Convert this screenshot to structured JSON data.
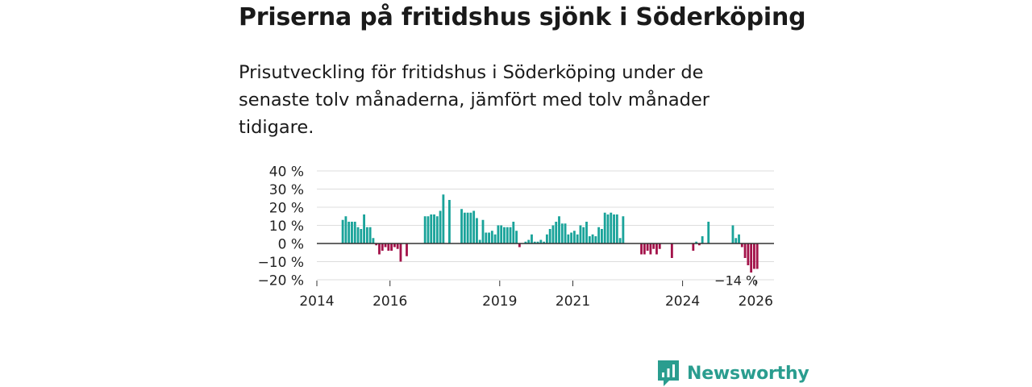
{
  "title": "Priserna på fritidshus sjönk i Söderköping",
  "subtitle": "Prisutveckling för fritidshus i Söderköping under de senaste tolv månaderna, jämfört med tolv månader tidigare.",
  "brand": {
    "name": "Newsworthy",
    "icon": "chart-logo-icon"
  },
  "colors": {
    "positive": "#1aa39a",
    "negative": "#a3134a",
    "grid": "#dddddd",
    "axis": "#333333",
    "brand": "#2a9d8f"
  },
  "chart_data": {
    "type": "bar",
    "title": "Priserna på fritidshus sjönk i Söderköping",
    "xlabel": "",
    "ylabel": "",
    "unit": "%",
    "ylim": [
      -20,
      40
    ],
    "yticks": [
      40,
      30,
      20,
      10,
      0,
      -10,
      -20
    ],
    "ytick_labels": [
      "40 %",
      "30 %",
      "20 %",
      "10 %",
      "0 %",
      "−10 %",
      "−20 %"
    ],
    "xlim": [
      2014.0,
      2026.5
    ],
    "xticks": [
      2014,
      2016,
      2019,
      2021,
      2024,
      2026
    ],
    "xtick_labels": [
      "2014",
      "2016",
      "2019",
      "2021",
      "2024",
      "2026"
    ],
    "bar_width_months": 0.75,
    "start": "2014-09",
    "values": [
      13,
      15,
      12,
      12,
      12,
      9,
      8,
      16,
      9,
      9,
      3,
      -1,
      -6,
      -4,
      -2,
      -4,
      -4,
      -2,
      -3,
      -10,
      null,
      -7,
      null,
      null,
      null,
      null,
      null,
      15,
      15,
      16,
      16,
      15,
      18,
      27,
      null,
      24,
      null,
      null,
      null,
      19,
      17,
      17,
      17,
      18,
      14,
      2,
      13,
      6,
      6,
      7,
      5,
      10,
      10,
      9,
      9,
      9,
      12,
      7,
      -2,
      null,
      1,
      2,
      5,
      1,
      1,
      2,
      1,
      5,
      8,
      10,
      12,
      15,
      11,
      11,
      5,
      6,
      7,
      5,
      10,
      9,
      12,
      4,
      5,
      4,
      9,
      8,
      17,
      16,
      17,
      16,
      16,
      3,
      15,
      null,
      null,
      null,
      null,
      null,
      -6,
      -6,
      -4,
      -6,
      -3,
      -6,
      -3,
      null,
      null,
      null,
      -8,
      null,
      null,
      null,
      null,
      null,
      null,
      -4,
      1,
      -1,
      4,
      null,
      12,
      null,
      null,
      null,
      null,
      null,
      null,
      null,
      10,
      3,
      5,
      -2,
      -8,
      -12,
      -16,
      -14,
      -14
    ],
    "last_label": "−14 %"
  }
}
